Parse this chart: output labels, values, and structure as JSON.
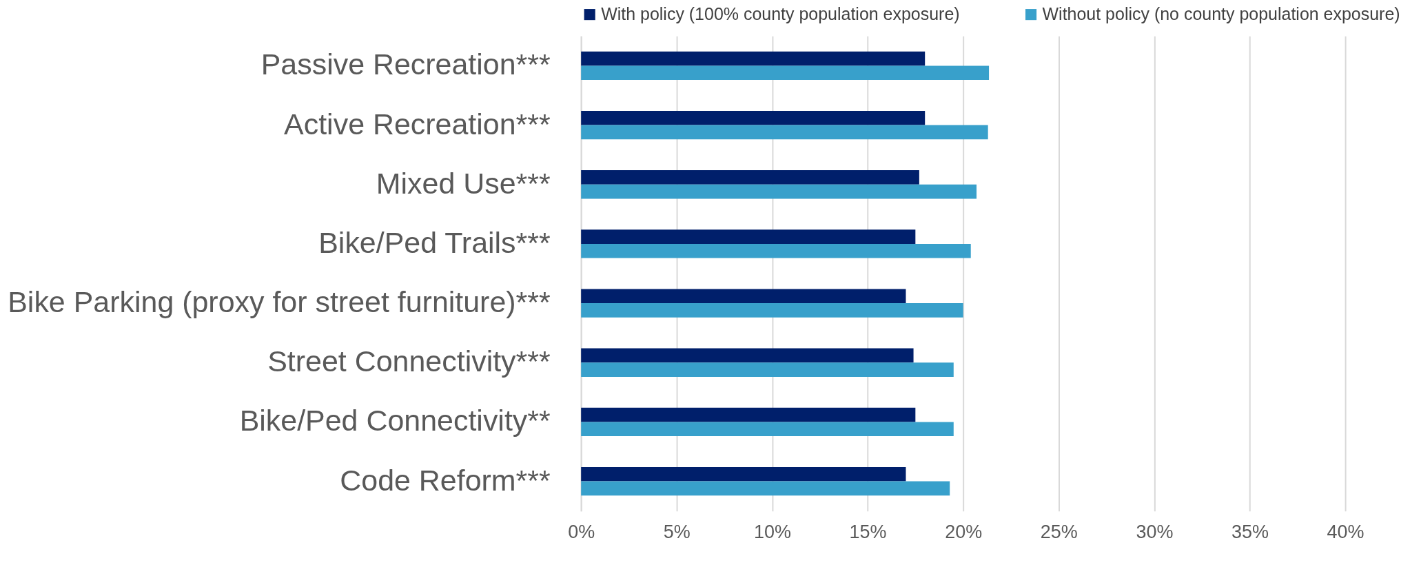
{
  "chart_data": {
    "type": "bar",
    "orientation": "horizontal",
    "categories": [
      "Passive Recreation***",
      "Active Recreation***",
      "Mixed Use***",
      "Bike/Ped Trails***",
      "Bike Parking (proxy for street furniture)***",
      "Street Connectivity***",
      "Bike/Ped Connectivity**",
      "Code Reform***"
    ],
    "series": [
      {
        "name": "With policy (100% county population exposure)",
        "color": "#001f6b",
        "values": [
          18.0,
          18.0,
          17.7,
          17.5,
          17.0,
          17.4,
          17.5,
          17.0
        ]
      },
      {
        "name": "Without policy (no county population exposure)",
        "color": "#38a0cb",
        "values": [
          21.35,
          21.3,
          20.7,
          20.4,
          20.0,
          19.5,
          19.5,
          19.3
        ]
      }
    ],
    "xlim": [
      0,
      40
    ],
    "xticks": [
      {
        "value": 0,
        "label": "0%"
      },
      {
        "value": 5,
        "label": "5%"
      },
      {
        "value": 10,
        "label": "10%"
      },
      {
        "value": 15,
        "label": "15%"
      },
      {
        "value": 20,
        "label": "20%"
      },
      {
        "value": 25,
        "label": "25%"
      },
      {
        "value": 30,
        "label": "30%"
      },
      {
        "value": 35,
        "label": "35%"
      },
      {
        "value": 40,
        "label": "40%"
      }
    ],
    "grid": "x",
    "legend": "top"
  }
}
